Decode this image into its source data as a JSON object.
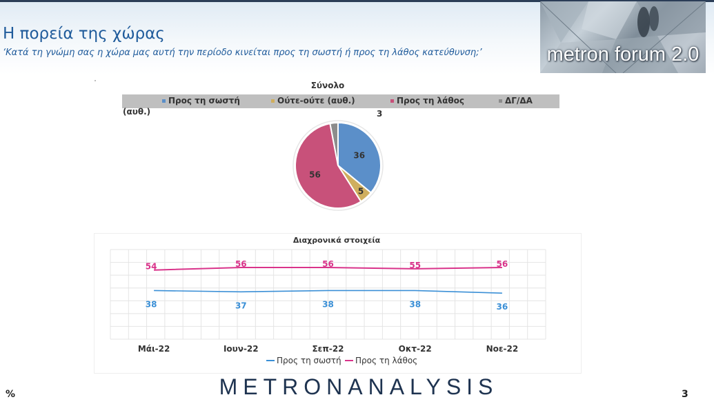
{
  "header": {
    "title": "Η πορεία της χώρας",
    "subtitle": "‘Κατά τη γνώμη σας η χώρα μας αυτή την περίοδο κινείται προς τη σωστή ή προς τη λάθος κατεύθυνση;’",
    "logo_text": "metron forum 2.0"
  },
  "legend": {
    "items": [
      {
        "label": "Προς τη σωστή",
        "color": "#5b8fc9"
      },
      {
        "label": "Ούτε-ούτε (αυθ.)",
        "color": "#cfae5e"
      },
      {
        "label": "Προς τη λάθος",
        "color": "#c8517a"
      },
      {
        "label": "ΔΓ/ΔΑ",
        "color": "#8c8c8c"
      }
    ],
    "wrap_text": "(αυθ.)"
  },
  "chart_data": [
    {
      "type": "pie",
      "title": "Σύνολο",
      "categories": [
        "Προς τη σωστή",
        "Ούτε-ούτε (αυθ.)",
        "Προς τη λάθος",
        "ΔΓ/ΔΑ"
      ],
      "values": [
        36,
        5,
        56,
        3
      ],
      "colors": [
        "#5b8fc9",
        "#cfae5e",
        "#c8517a",
        "#8c8c8c"
      ],
      "data_labels": [
        "36",
        "5",
        "56",
        "3"
      ]
    },
    {
      "type": "line",
      "title": "Διαχρονικά στοιχεία",
      "categories": [
        "Μάι-22",
        "Ιουν-22",
        "Σεπ-22",
        "Οκτ-22",
        "Νοε-22"
      ],
      "series": [
        {
          "name": "Προς τη σωστή",
          "values": [
            38,
            37,
            38,
            38,
            36
          ],
          "color": "#3a8fd6"
        },
        {
          "name": "Προς τη λάθος",
          "values": [
            54,
            56,
            56,
            55,
            56
          ],
          "color": "#d9338a"
        }
      ],
      "ylim": [
        0,
        70
      ],
      "grid": true,
      "legend_position": "bottom"
    }
  ],
  "footer": {
    "percent_sign": "%",
    "brand": "METRONANALYSIS",
    "page_number": "3"
  }
}
